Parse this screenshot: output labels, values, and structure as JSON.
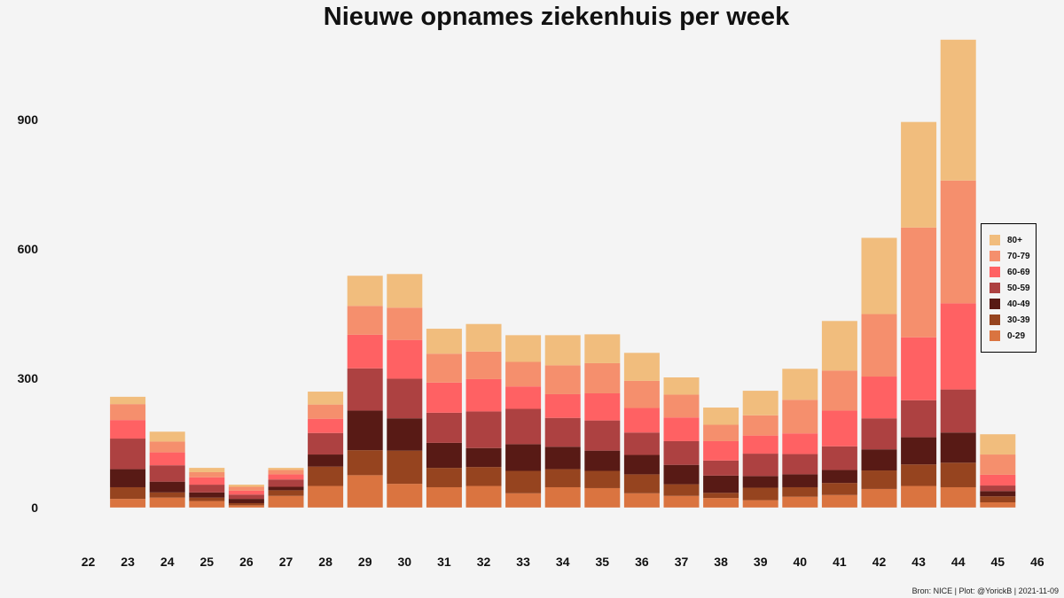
{
  "chart_data": {
    "type": "bar",
    "stacked": true,
    "title": "Nieuwe opnames ziekenhuis per week",
    "xlabel": "",
    "ylabel": "",
    "categories": [
      "22",
      "23",
      "24",
      "25",
      "26",
      "27",
      "28",
      "29",
      "30",
      "31",
      "32",
      "33",
      "34",
      "35",
      "36",
      "37",
      "38",
      "39",
      "40",
      "41",
      "42",
      "43",
      "44",
      "45",
      "46"
    ],
    "ylim": [
      -97,
      1100
    ],
    "yticks": [
      0,
      300,
      600,
      900
    ],
    "legend_position": "right",
    "series": [
      {
        "name": "0-29",
        "color": "#da7440",
        "values": [
          0,
          20,
          23,
          15,
          5,
          27,
          50,
          75,
          55,
          47,
          50,
          33,
          47,
          45,
          33,
          27,
          22,
          17,
          25,
          29,
          43,
          50,
          47,
          12,
          0
        ]
      },
      {
        "name": "30-39",
        "color": "#96441f",
        "values": [
          0,
          27,
          12,
          8,
          5,
          13,
          45,
          58,
          77,
          45,
          44,
          52,
          42,
          40,
          44,
          27,
          12,
          29,
          22,
          28,
          43,
          50,
          57,
          14,
          0
        ]
      },
      {
        "name": "40-49",
        "color": "#581a15",
        "values": [
          0,
          42,
          25,
          12,
          10,
          8,
          28,
          92,
          75,
          58,
          44,
          62,
          52,
          47,
          45,
          45,
          40,
          27,
          30,
          30,
          49,
          63,
          70,
          12,
          0
        ]
      },
      {
        "name": "50-59",
        "color": "#ad4141",
        "values": [
          0,
          71,
          38,
          18,
          10,
          17,
          50,
          98,
          92,
          70,
          85,
          82,
          67,
          70,
          52,
          55,
          35,
          52,
          47,
          55,
          72,
          86,
          100,
          13,
          0
        ]
      },
      {
        "name": "60-69",
        "color": "#ff6163",
        "values": [
          0,
          43,
          30,
          17,
          9,
          12,
          33,
          78,
          90,
          70,
          75,
          52,
          55,
          63,
          57,
          55,
          45,
          42,
          48,
          83,
          97,
          146,
          200,
          25,
          0
        ]
      },
      {
        "name": "70-79",
        "color": "#f58f6d",
        "values": [
          0,
          37,
          25,
          12,
          9,
          10,
          33,
          67,
          75,
          67,
          64,
          57,
          67,
          70,
          63,
          53,
          38,
          47,
          78,
          93,
          145,
          255,
          285,
          47,
          0
        ]
      },
      {
        "name": "80+",
        "color": "#f1bd7d",
        "values": [
          0,
          17,
          23,
          10,
          5,
          5,
          30,
          70,
          78,
          58,
          64,
          62,
          70,
          67,
          65,
          40,
          40,
          57,
          72,
          115,
          177,
          245,
          327,
          47,
          0
        ]
      }
    ]
  },
  "source": "Bron: NICE | Plot: @YorickB |  2021-11-09"
}
